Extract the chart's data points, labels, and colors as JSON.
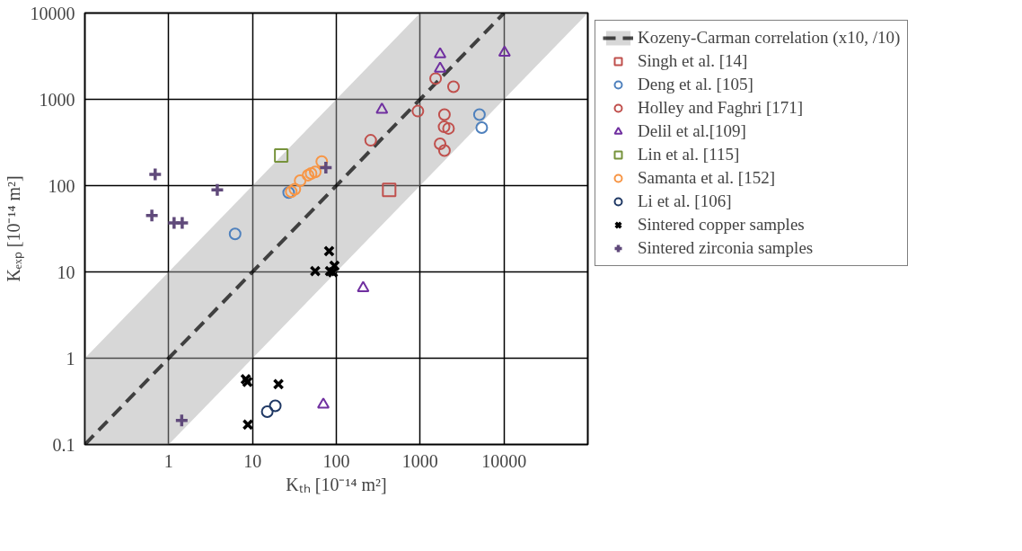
{
  "chart_data": {
    "type": "scatter",
    "xlabel": "Kₜₕ [10⁻¹⁴ m²]",
    "ylabel": "Kₑₓₚ [10⁻¹⁴ m²]",
    "log": "xy",
    "grid": true,
    "legend": "right",
    "xlim": [
      0.1,
      100000
    ],
    "ylim": [
      0.1,
      10000
    ],
    "xticks": [
      {
        "value": 0.1,
        "label": null
      },
      1,
      10,
      100,
      1000,
      10000,
      {
        "value": 100000,
        "label": null
      }
    ],
    "yticks": [
      0.1,
      1,
      10,
      100,
      1000,
      10000
    ],
    "series": [
      {
        "name": "Kozeny-Carman correlation (x10, /10)",
        "type": "line",
        "color": "#000000",
        "line_style": "dashed",
        "marker": "none",
        "x": [
          0.1,
          1,
          1000,
          10000,
          100000
        ],
        "values": [
          0.1,
          1,
          1000,
          10000,
          null
        ],
        "lower": [
          0.1,
          0.1,
          100,
          1000,
          10000
        ],
        "upper": [
          1,
          10,
          10000,
          10000,
          10000
        ]
      },
      {
        "name": "Singh et al. [14]",
        "marker": "square",
        "color": "#c0504d",
        "x": [
          427
        ],
        "values": [
          89
        ]
      },
      {
        "name": "Deng et al. [105]",
        "marker": "circle",
        "color": "#4f81bd",
        "x": [
          6.2,
          27,
          5100,
          5430
        ],
        "values": [
          27.5,
          83,
          665,
          470
        ]
      },
      {
        "name": "Holley and Faghri [171]",
        "marker": "circle",
        "color": "#c0504d",
        "x": [
          1530,
          2500,
          940,
          257,
          1950,
          1930,
          2180,
          1730,
          1950
        ],
        "values": [
          1740,
          1400,
          730,
          335,
          665,
          480,
          460,
          305,
          255
        ]
      },
      {
        "name": "Delil et al.[109]",
        "marker": "triangle",
        "color": "#7030a0",
        "x": [
          1730,
          1730,
          10160,
          350,
          209,
          70
        ],
        "values": [
          3330,
          2270,
          3470,
          760,
          6.5,
          0.29
        ]
      },
      {
        "name": "Lin et al. [115]",
        "marker": "square",
        "color": "#77933c",
        "x": [
          22
        ],
        "values": [
          224
        ]
      },
      {
        "name": "Samanta et al. [152]",
        "marker": "circle",
        "color": "#f79646",
        "x": [
          67,
          56,
          50,
          46,
          37,
          32,
          29
        ],
        "values": [
          190,
          144,
          138,
          132,
          114,
          91,
          85
        ]
      },
      {
        "name": "Li et al. [106]",
        "marker": "circle",
        "color": "#1f3864",
        "x": [
          15,
          18.7
        ],
        "values": [
          0.24,
          0.28
        ]
      },
      {
        "name": "Sintered copper samples",
        "marker": "x",
        "color": "#000000",
        "x": [
          8.3,
          8.7,
          20.4,
          8.8,
          82,
          56,
          84,
          95,
          91
        ],
        "values": [
          0.57,
          0.53,
          0.5,
          0.17,
          17.4,
          10.2,
          10.2,
          11.8,
          9.9
        ]
      },
      {
        "name": "Sintered zirconia samples",
        "marker": "cross",
        "color": "#604a7b",
        "x": [
          0.69,
          3.8,
          0.63,
          1.16,
          1.45,
          75,
          1.43
        ],
        "values": [
          135,
          89,
          45,
          37,
          37,
          162,
          0.19
        ]
      }
    ]
  }
}
